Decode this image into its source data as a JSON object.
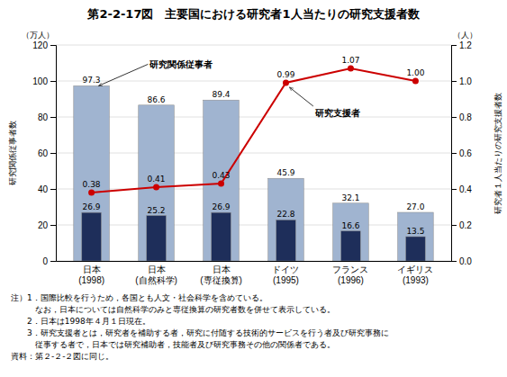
{
  "chart_data": {
    "type": "bar",
    "title": "第2-2-17図　主要国における研究者1人当たりの研究支援者数",
    "categories": [
      "日本\n(1998)",
      "日本\n(自然科学)",
      "日本\n(専従換算)",
      "ドイツ\n(1995)",
      "フランス\n(1996)",
      "イギリス\n(1993)"
    ],
    "series": [
      {
        "name": "研究関係従事者",
        "type": "bar",
        "color": "#a0b4d0",
        "values": [
          97.3,
          86.6,
          89.4,
          45.9,
          32.1,
          27.0
        ],
        "value_labels": [
          "97.3",
          "86.6",
          "89.4",
          "45.9",
          "32.1",
          "27.0"
        ]
      },
      {
        "type": "bar",
        "color": "#1e2e5a",
        "values": [
          26.9,
          25.2,
          26.9,
          22.8,
          16.6,
          13.5
        ],
        "value_labels": [
          "26.9",
          "25.2",
          "26.9",
          "22.8",
          "16.6",
          "13.5"
        ]
      },
      {
        "name": "研究支援者",
        "type": "line",
        "axis": "y2",
        "color": "#cc0000",
        "marker": "circle",
        "line_style": "solid",
        "values": [
          0.38,
          0.41,
          0.43,
          0.99,
          1.07,
          1.0
        ],
        "value_labels": [
          "0.38",
          "0.41",
          "0.43",
          "0.99",
          "1.07",
          "1.00"
        ]
      }
    ],
    "ylim": [
      0,
      120
    ],
    "yticks": [
      0,
      20,
      40,
      60,
      80,
      100,
      120
    ],
    "y2lim": [
      0.0,
      1.2
    ],
    "y2ticks": [
      {
        "value": 0.0,
        "label": "0.0"
      },
      {
        "value": 0.2,
        "label": "0.2"
      },
      {
        "value": 0.4,
        "label": "0.4"
      },
      {
        "value": 0.6,
        "label": "0.6"
      },
      {
        "value": 0.8,
        "label": "0.8"
      },
      {
        "value": 1.0,
        "label": "1.0"
      },
      {
        "value": 1.2,
        "label": "1.2"
      }
    ],
    "y_label": "研究関係従事者数",
    "y2_label": "研究者１人当たりの研究支援者数",
    "y_unit": "（万人）",
    "y2_unit": "（人）",
    "notes": [
      "注）1．国際比較を行うため，各国とも人文・社会科学を含めている。",
      "　　　なお，日本については自然科学のみと専従換算の研究者数を併せて表示している。",
      "　　2．日本は1998年４月１日現在。",
      "　　3．研究支援者とは，研究者を補助する者，研究に付随する技術的サービスを行う者及び研究事務に",
      "　　　従事する者で，日本では研究補助者，技能者及び研究事務その他の関係者である。"
    ],
    "source": "資料：第２-２-２図に同じ。",
    "grid": true,
    "data_labels": true
  }
}
